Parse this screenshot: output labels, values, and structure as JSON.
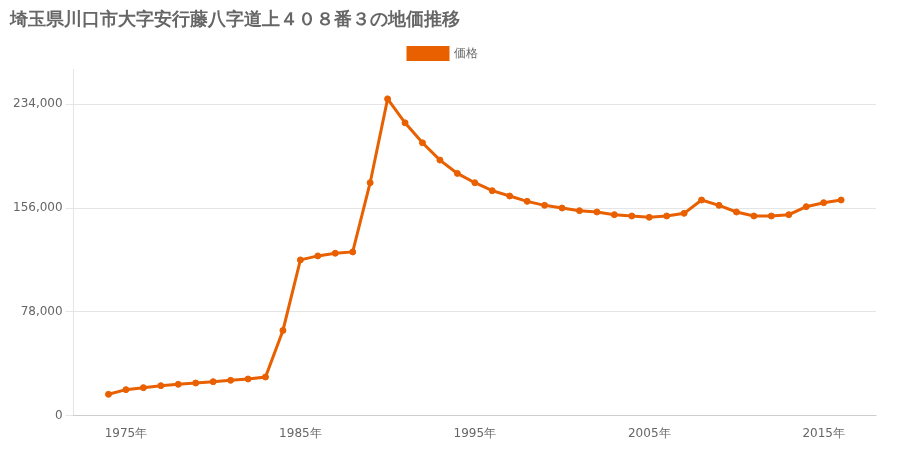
{
  "chart_data": {
    "type": "line",
    "title": "埼玉県川口市大字安行藤八字道上４０８番３の地価推移",
    "x": [
      1974,
      1975,
      1976,
      1977,
      1978,
      1979,
      1980,
      1981,
      1982,
      1983,
      1984,
      1985,
      1986,
      1987,
      1988,
      1989,
      1990,
      1991,
      1992,
      1993,
      1994,
      1995,
      1996,
      1997,
      1998,
      1999,
      2000,
      2001,
      2002,
      2003,
      2004,
      2005,
      2006,
      2007,
      2008,
      2009,
      2010,
      2011,
      2012,
      2013,
      2014,
      2015,
      2016
    ],
    "series": [
      {
        "name": "価格",
        "color": "#E86000",
        "marker": "circle",
        "line_style": "solid",
        "values": [
          16000,
          19500,
          21000,
          22500,
          23500,
          24500,
          25500,
          26500,
          27500,
          29000,
          64000,
          117000,
          120000,
          122000,
          123000,
          175000,
          238000,
          220000,
          205000,
          192000,
          182000,
          175000,
          169000,
          165000,
          161000,
          158000,
          156000,
          154000,
          153000,
          151000,
          150000,
          149000,
          150000,
          152000,
          162000,
          158000,
          153000,
          150000,
          150000,
          151000,
          157000,
          160000,
          162000
        ]
      }
    ],
    "xlim": [
      1972,
      2018
    ],
    "xticks": [
      {
        "value": 1975,
        "label": "1975年"
      },
      {
        "value": 1985,
        "label": "1985年"
      },
      {
        "value": 1995,
        "label": "1995年"
      },
      {
        "value": 2005,
        "label": "2005年"
      },
      {
        "value": 2015,
        "label": "2015年"
      }
    ],
    "ylim": [
      0,
      260000
    ],
    "yticks": [
      0,
      {
        "value": 78000,
        "label": "78,000"
      },
      {
        "value": 156000,
        "label": "156,000"
      },
      {
        "value": 234000,
        "label": "234,000"
      }
    ],
    "grid": "y",
    "legend": "top"
  }
}
